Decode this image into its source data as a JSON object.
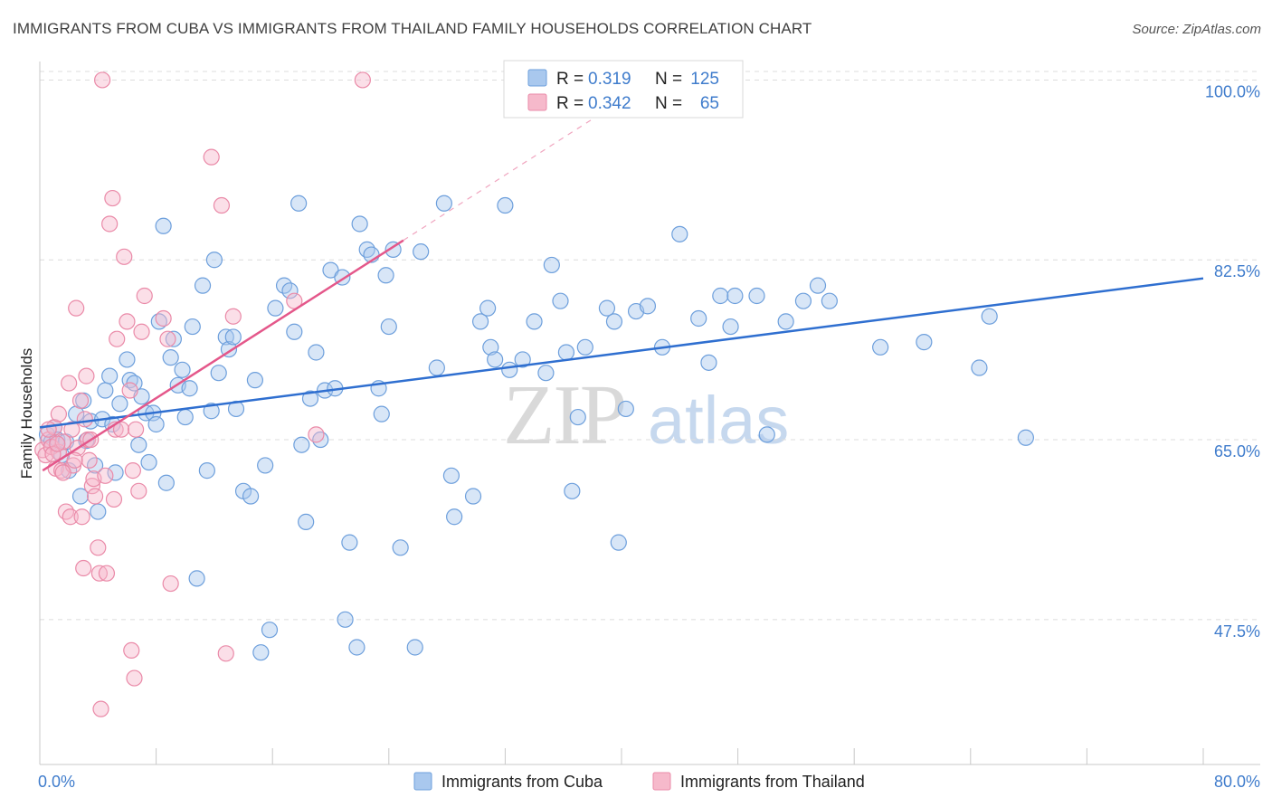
{
  "header": {
    "title": "IMMIGRANTS FROM CUBA VS IMMIGRANTS FROM THAILAND FAMILY HOUSEHOLDS CORRELATION CHART",
    "source": "Source: ZipAtlas.com"
  },
  "watermark": {
    "zip": "ZIP",
    "atlas": "atlas"
  },
  "colors": {
    "cuba_fill": "#a9c8ee",
    "cuba_stroke": "#6d9fdc",
    "cuba_line": "#2f6fd0",
    "thailand_fill": "#f6b9cb",
    "thailand_stroke": "#ea8aa8",
    "thailand_line": "#e4578a",
    "grid": "#dcdcdc",
    "tick_text": "#3f7ccc"
  },
  "legend": {
    "rows": [
      {
        "r_label": "R =",
        "r_value": "0.319",
        "n_label": "N =",
        "n_value": "125"
      },
      {
        "r_label": "R =",
        "r_value": "0.342",
        "n_label": "N =",
        "n_value": "65"
      }
    ]
  },
  "bottom_legend": [
    "Immigrants from Cuba",
    "Immigrants from Thailand"
  ],
  "chart_data": {
    "type": "scatter",
    "title": "IMMIGRANTS FROM CUBA VS IMMIGRANTS FROM THAILAND FAMILY HOUSEHOLDS CORRELATION CHART",
    "xlabel": "",
    "ylabel": "Family Households",
    "xlim": [
      0,
      80
    ],
    "ylim": [
      33.4,
      101.8
    ],
    "x_tick_labels": [
      "0.0%",
      "80.0%"
    ],
    "y_ticks": [
      {
        "value": 47.5,
        "label": "47.5%"
      },
      {
        "value": 65.0,
        "label": "65.0%"
      },
      {
        "value": 82.5,
        "label": "82.5%"
      },
      {
        "value": 100.0,
        "label": "100.0%"
      }
    ],
    "grid": true,
    "legend_position": "top-center",
    "series": [
      {
        "name": "Immigrants from Cuba",
        "R": 0.319,
        "N": 125,
        "trend": {
          "x": [
            0,
            80
          ],
          "y": [
            66.2,
            80.7
          ]
        },
        "points": [
          [
            0.5,
            65.5
          ],
          [
            0.8,
            64.8
          ],
          [
            1.0,
            66.2
          ],
          [
            1.2,
            65.0
          ],
          [
            1.5,
            63.5
          ],
          [
            1.8,
            64.8
          ],
          [
            2.0,
            62.0
          ],
          [
            2.5,
            67.5
          ],
          [
            2.8,
            59.5
          ],
          [
            3.0,
            68.8
          ],
          [
            3.2,
            64.9
          ],
          [
            3.5,
            66.8
          ],
          [
            3.8,
            62.5
          ],
          [
            4.0,
            58.0
          ],
          [
            4.3,
            67.0
          ],
          [
            4.5,
            69.8
          ],
          [
            4.8,
            71.2
          ],
          [
            5.0,
            66.5
          ],
          [
            5.2,
            61.8
          ],
          [
            5.5,
            68.5
          ],
          [
            6.0,
            72.8
          ],
          [
            6.2,
            70.8
          ],
          [
            6.5,
            70.5
          ],
          [
            6.8,
            64.5
          ],
          [
            7.0,
            69.2
          ],
          [
            7.3,
            67.6
          ],
          [
            7.5,
            62.8
          ],
          [
            7.8,
            67.6
          ],
          [
            8.0,
            66.5
          ],
          [
            8.2,
            76.5
          ],
          [
            8.5,
            85.8
          ],
          [
            8.7,
            60.8
          ],
          [
            9.0,
            73.0
          ],
          [
            9.2,
            74.8
          ],
          [
            9.5,
            70.3
          ],
          [
            9.8,
            71.8
          ],
          [
            10.0,
            67.2
          ],
          [
            10.3,
            70.0
          ],
          [
            10.5,
            76.0
          ],
          [
            10.8,
            51.5
          ],
          [
            11.2,
            80.0
          ],
          [
            11.5,
            62.0
          ],
          [
            11.8,
            67.8
          ],
          [
            12.0,
            82.5
          ],
          [
            12.3,
            71.5
          ],
          [
            12.8,
            75.0
          ],
          [
            13.0,
            73.8
          ],
          [
            13.3,
            75.0
          ],
          [
            13.5,
            68.0
          ],
          [
            14.0,
            60.0
          ],
          [
            14.5,
            59.5
          ],
          [
            14.8,
            70.8
          ],
          [
            15.5,
            62.5
          ],
          [
            15.8,
            46.5
          ],
          [
            15.2,
            44.3
          ],
          [
            16.2,
            77.8
          ],
          [
            16.8,
            80.0
          ],
          [
            17.2,
            79.5
          ],
          [
            17.5,
            75.5
          ],
          [
            17.8,
            88.0
          ],
          [
            18.0,
            64.5
          ],
          [
            18.3,
            57.0
          ],
          [
            18.6,
            69.0
          ],
          [
            19.0,
            73.5
          ],
          [
            19.3,
            65.0
          ],
          [
            19.6,
            69.8
          ],
          [
            20.0,
            81.5
          ],
          [
            20.3,
            70.0
          ],
          [
            20.8,
            80.8
          ],
          [
            21.0,
            47.5
          ],
          [
            21.3,
            55.0
          ],
          [
            21.8,
            44.8
          ],
          [
            22.0,
            86.0
          ],
          [
            22.5,
            83.5
          ],
          [
            22.8,
            83.0
          ],
          [
            23.3,
            70.0
          ],
          [
            23.5,
            67.5
          ],
          [
            23.8,
            81.0
          ],
          [
            24.0,
            76.0
          ],
          [
            24.3,
            83.5
          ],
          [
            24.8,
            54.5
          ],
          [
            25.8,
            44.8
          ],
          [
            26.2,
            83.3
          ],
          [
            27.3,
            72.0
          ],
          [
            27.8,
            88.0
          ],
          [
            28.3,
            61.5
          ],
          [
            28.5,
            57.5
          ],
          [
            29.8,
            59.5
          ],
          [
            30.3,
            76.5
          ],
          [
            30.8,
            77.8
          ],
          [
            31.0,
            74.0
          ],
          [
            31.3,
            72.8
          ],
          [
            32.0,
            87.8
          ],
          [
            32.3,
            71.8
          ],
          [
            33.2,
            72.8
          ],
          [
            34.0,
            76.5
          ],
          [
            34.8,
            71.5
          ],
          [
            35.2,
            82.0
          ],
          [
            35.8,
            78.5
          ],
          [
            36.2,
            73.5
          ],
          [
            36.6,
            60.0
          ],
          [
            37.0,
            67.2
          ],
          [
            37.5,
            74.0
          ],
          [
            39.0,
            77.8
          ],
          [
            39.5,
            76.5
          ],
          [
            39.8,
            55.0
          ],
          [
            40.3,
            68.0
          ],
          [
            41.0,
            77.5
          ],
          [
            41.8,
            78.0
          ],
          [
            42.8,
            74.0
          ],
          [
            44.0,
            85.0
          ],
          [
            45.3,
            76.8
          ],
          [
            46.0,
            72.5
          ],
          [
            46.8,
            79.0
          ],
          [
            47.8,
            79.0
          ],
          [
            47.5,
            76.0
          ],
          [
            49.3,
            79.0
          ],
          [
            50.0,
            65.5
          ],
          [
            51.3,
            76.5
          ],
          [
            52.5,
            78.5
          ],
          [
            53.5,
            80.0
          ],
          [
            54.3,
            78.5
          ],
          [
            57.8,
            74.0
          ],
          [
            60.8,
            74.5
          ],
          [
            64.6,
            72.0
          ],
          [
            65.3,
            77.0
          ],
          [
            67.8,
            65.2
          ]
        ]
      },
      {
        "name": "Immigrants from Thailand",
        "R": 0.342,
        "N": 65,
        "trend": {
          "x": [
            0.2,
            25.0
          ],
          "y": [
            62.0,
            84.4
          ]
        },
        "trend_dashed": {
          "x": [
            25.0,
            38.0
          ],
          "y": [
            84.4,
            96.2
          ]
        },
        "points": [
          [
            0.2,
            64.0
          ],
          [
            0.4,
            63.5
          ],
          [
            0.6,
            65.0
          ],
          [
            0.8,
            64.3
          ],
          [
            1.0,
            66.2
          ],
          [
            1.1,
            62.2
          ],
          [
            1.3,
            63.8
          ],
          [
            1.3,
            67.5
          ],
          [
            1.5,
            62.0
          ],
          [
            1.6,
            64.8
          ],
          [
            1.8,
            58.0
          ],
          [
            2.0,
            70.5
          ],
          [
            2.1,
            57.5
          ],
          [
            2.2,
            66.0
          ],
          [
            2.3,
            62.5
          ],
          [
            2.5,
            77.8
          ],
          [
            2.6,
            64.2
          ],
          [
            2.8,
            68.8
          ],
          [
            2.9,
            57.5
          ],
          [
            3.0,
            52.5
          ],
          [
            3.2,
            71.2
          ],
          [
            3.3,
            65.0
          ],
          [
            3.4,
            63.0
          ],
          [
            3.5,
            65.0
          ],
          [
            3.6,
            60.5
          ],
          [
            3.7,
            61.2
          ],
          [
            3.8,
            59.5
          ],
          [
            4.0,
            54.5
          ],
          [
            4.1,
            52.0
          ],
          [
            4.3,
            100.0
          ],
          [
            4.5,
            61.5
          ],
          [
            4.6,
            52.0
          ],
          [
            4.8,
            86.0
          ],
          [
            5.0,
            88.5
          ],
          [
            5.1,
            59.2
          ],
          [
            5.2,
            66.0
          ],
          [
            5.3,
            74.8
          ],
          [
            5.6,
            66.0
          ],
          [
            5.8,
            82.8
          ],
          [
            6.0,
            76.5
          ],
          [
            6.2,
            69.8
          ],
          [
            6.4,
            62.0
          ],
          [
            6.6,
            66.0
          ],
          [
            6.8,
            60.0
          ],
          [
            7.0,
            75.5
          ],
          [
            7.2,
            79.0
          ],
          [
            6.5,
            41.8
          ],
          [
            6.3,
            44.5
          ],
          [
            4.2,
            38.8
          ],
          [
            8.5,
            76.8
          ],
          [
            8.8,
            74.8
          ],
          [
            9.0,
            51.0
          ],
          [
            11.8,
            92.5
          ],
          [
            12.5,
            87.8
          ],
          [
            12.8,
            44.2
          ],
          [
            13.3,
            77.0
          ],
          [
            17.5,
            78.5
          ],
          [
            19.0,
            65.5
          ],
          [
            22.2,
            100.0
          ],
          [
            0.6,
            66.0
          ],
          [
            0.9,
            63.6
          ],
          [
            1.2,
            64.6
          ],
          [
            1.6,
            61.8
          ],
          [
            2.4,
            63.0
          ],
          [
            3.1,
            67.0
          ]
        ]
      }
    ]
  }
}
